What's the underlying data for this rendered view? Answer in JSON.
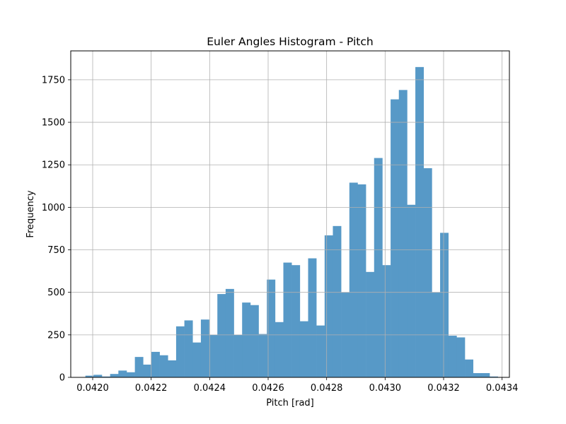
{
  "chart_data": {
    "type": "bar",
    "title": "Euler Angles Histogram - Pitch",
    "xlabel": "Pitch [rad]",
    "ylabel": "Frequency",
    "xlim": [
      0.041925,
      0.043425
    ],
    "ylim": [
      0,
      1920
    ],
    "grid": true,
    "color": "#5799c7",
    "x_ticks": [
      {
        "value": 0.042,
        "label": "0.0420"
      },
      {
        "value": 0.0422,
        "label": "0.0422"
      },
      {
        "value": 0.0424,
        "label": "0.0424"
      },
      {
        "value": 0.0426,
        "label": "0.0426"
      },
      {
        "value": 0.0428,
        "label": "0.0428"
      },
      {
        "value": 0.043,
        "label": "0.0430"
      },
      {
        "value": 0.0432,
        "label": "0.0432"
      },
      {
        "value": 0.0434,
        "label": "0.0434"
      }
    ],
    "y_ticks": [
      {
        "value": 0,
        "label": "0"
      },
      {
        "value": 250,
        "label": "250"
      },
      {
        "value": 500,
        "label": "500"
      },
      {
        "value": 750,
        "label": "750"
      },
      {
        "value": 1000,
        "label": "1000"
      },
      {
        "value": 1250,
        "label": "1250"
      },
      {
        "value": 1500,
        "label": "1500"
      },
      {
        "value": 1750,
        "label": "1750"
      }
    ],
    "bin_start": 0.041975,
    "bin_width": 2.821e-05,
    "values": [
      10,
      15,
      5,
      20,
      40,
      30,
      120,
      75,
      150,
      130,
      100,
      300,
      335,
      205,
      340,
      250,
      490,
      520,
      250,
      440,
      425,
      255,
      575,
      325,
      675,
      660,
      330,
      700,
      305,
      835,
      890,
      500,
      1145,
      1135,
      620,
      1290,
      660,
      1635,
      1690,
      1015,
      1825,
      1230,
      500,
      850,
      245,
      235,
      105,
      25,
      25,
      5
    ]
  }
}
